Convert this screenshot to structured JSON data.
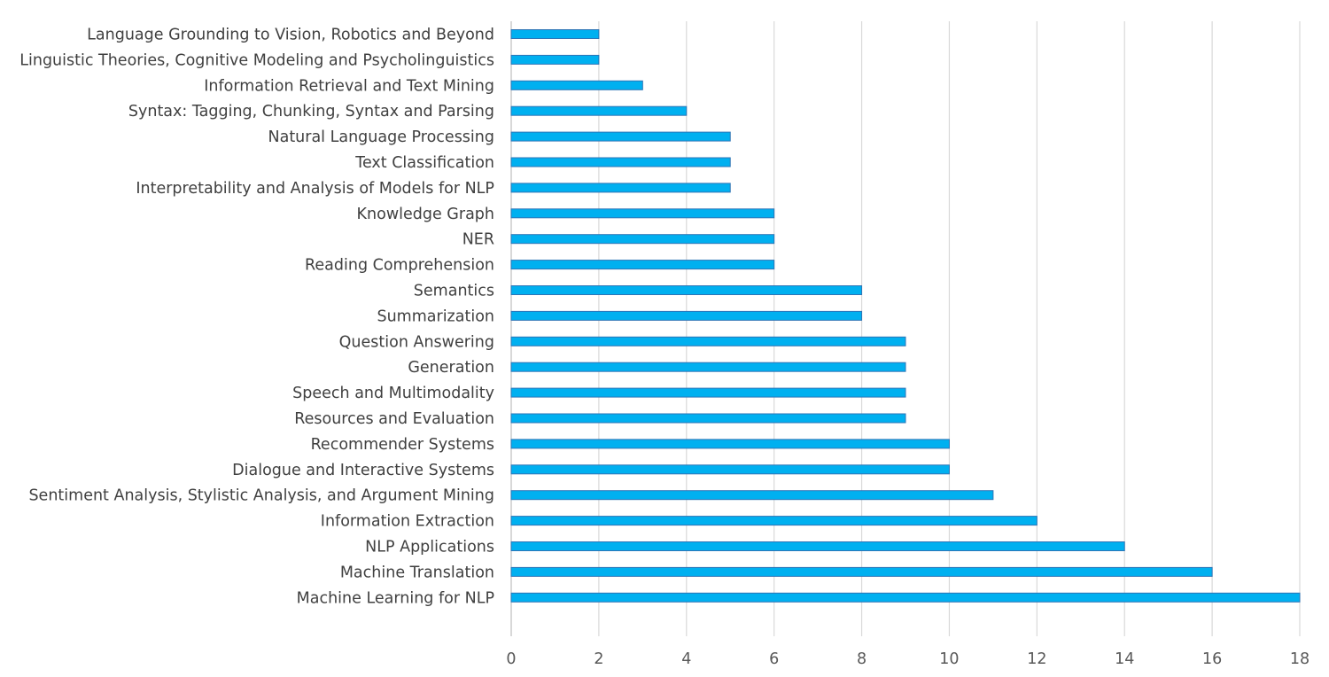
{
  "chart_data": {
    "type": "bar",
    "orientation": "horizontal",
    "title": "",
    "xlabel": "",
    "ylabel": "",
    "xlim": [
      0,
      18
    ],
    "xticks": [
      0,
      2,
      4,
      6,
      8,
      10,
      12,
      14,
      16,
      18
    ],
    "grid": true,
    "legend": "none",
    "bar_color": "#00B0F0",
    "bar_edge_color": "#2E75B6",
    "categories": [
      "Language Grounding to Vision, Robotics and Beyond",
      "Linguistic Theories, Cognitive Modeling and Psycholinguistics",
      "Information Retrieval and Text Mining",
      "Syntax: Tagging, Chunking, Syntax and Parsing",
      "Natural Language Processing",
      "Text Classification",
      "Interpretability and Analysis of Models for NLP",
      "Knowledge Graph",
      "NER",
      "Reading Comprehension",
      "Semantics",
      "Summarization",
      "Question Answering",
      "Generation",
      "Speech and Multimodality",
      "Resources and Evaluation",
      "Recommender Systems",
      "Dialogue and Interactive Systems",
      "Sentiment Analysis, Stylistic Analysis, and Argument Mining",
      "Information Extraction",
      "NLP Applications",
      "Machine Translation",
      "Machine Learning for NLP"
    ],
    "values": [
      2,
      2,
      3,
      4,
      5,
      5,
      5,
      6,
      6,
      6,
      8,
      8,
      9,
      9,
      9,
      9,
      10,
      10,
      11,
      12,
      14,
      16,
      18
    ]
  }
}
